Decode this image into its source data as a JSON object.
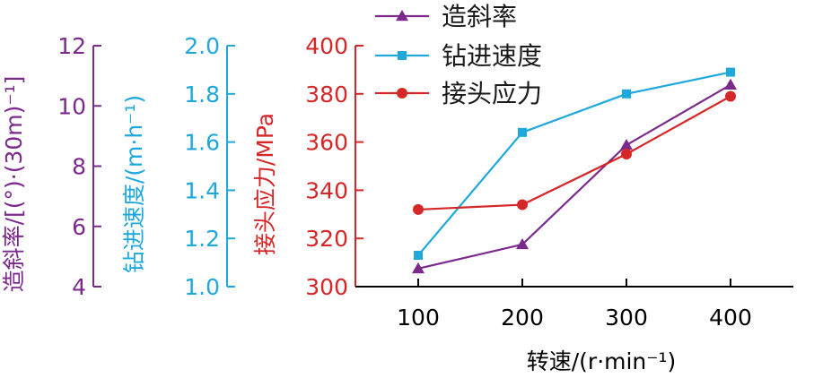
{
  "chart_data": {
    "type": "line",
    "x": [
      100,
      200,
      300,
      400
    ],
    "xlabel": "转速/(r·min⁻¹)",
    "xticks": [
      "100",
      "200",
      "300",
      "400"
    ],
    "axes": [
      {
        "id": "deviation",
        "label": "造斜率/[(°)·(30m)⁻¹]",
        "range": [
          4,
          12
        ],
        "ticks": [
          "4",
          "6",
          "8",
          "10",
          "12"
        ],
        "color": "#7b2a8c"
      },
      {
        "id": "speed",
        "label": "钻进速度/(m·h⁻¹)",
        "range": [
          1.0,
          2.0
        ],
        "ticks": [
          "1.0",
          "1.2",
          "1.4",
          "1.6",
          "1.8",
          "2.0"
        ],
        "color": "#1ea8dc"
      },
      {
        "id": "stress",
        "label": "接头应力/MPa",
        "range": [
          300,
          400
        ],
        "ticks": [
          "300",
          "320",
          "340",
          "360",
          "380",
          "400"
        ],
        "color": "#d62728"
      }
    ],
    "series": [
      {
        "name": "造斜率",
        "axis": "deviation",
        "color": "#7b2a8c",
        "marker": "triangle",
        "values": [
          4.6,
          5.4,
          8.7,
          10.7
        ]
      },
      {
        "name": "钻进速度",
        "axis": "speed",
        "color": "#1ea8dc",
        "marker": "square",
        "values": [
          1.13,
          1.64,
          1.8,
          1.89
        ]
      },
      {
        "name": "接头应力",
        "axis": "stress",
        "color": "#d62728",
        "marker": "circle",
        "values": [
          332,
          334,
          355,
          379
        ]
      }
    ],
    "legend_position": "top-right"
  }
}
